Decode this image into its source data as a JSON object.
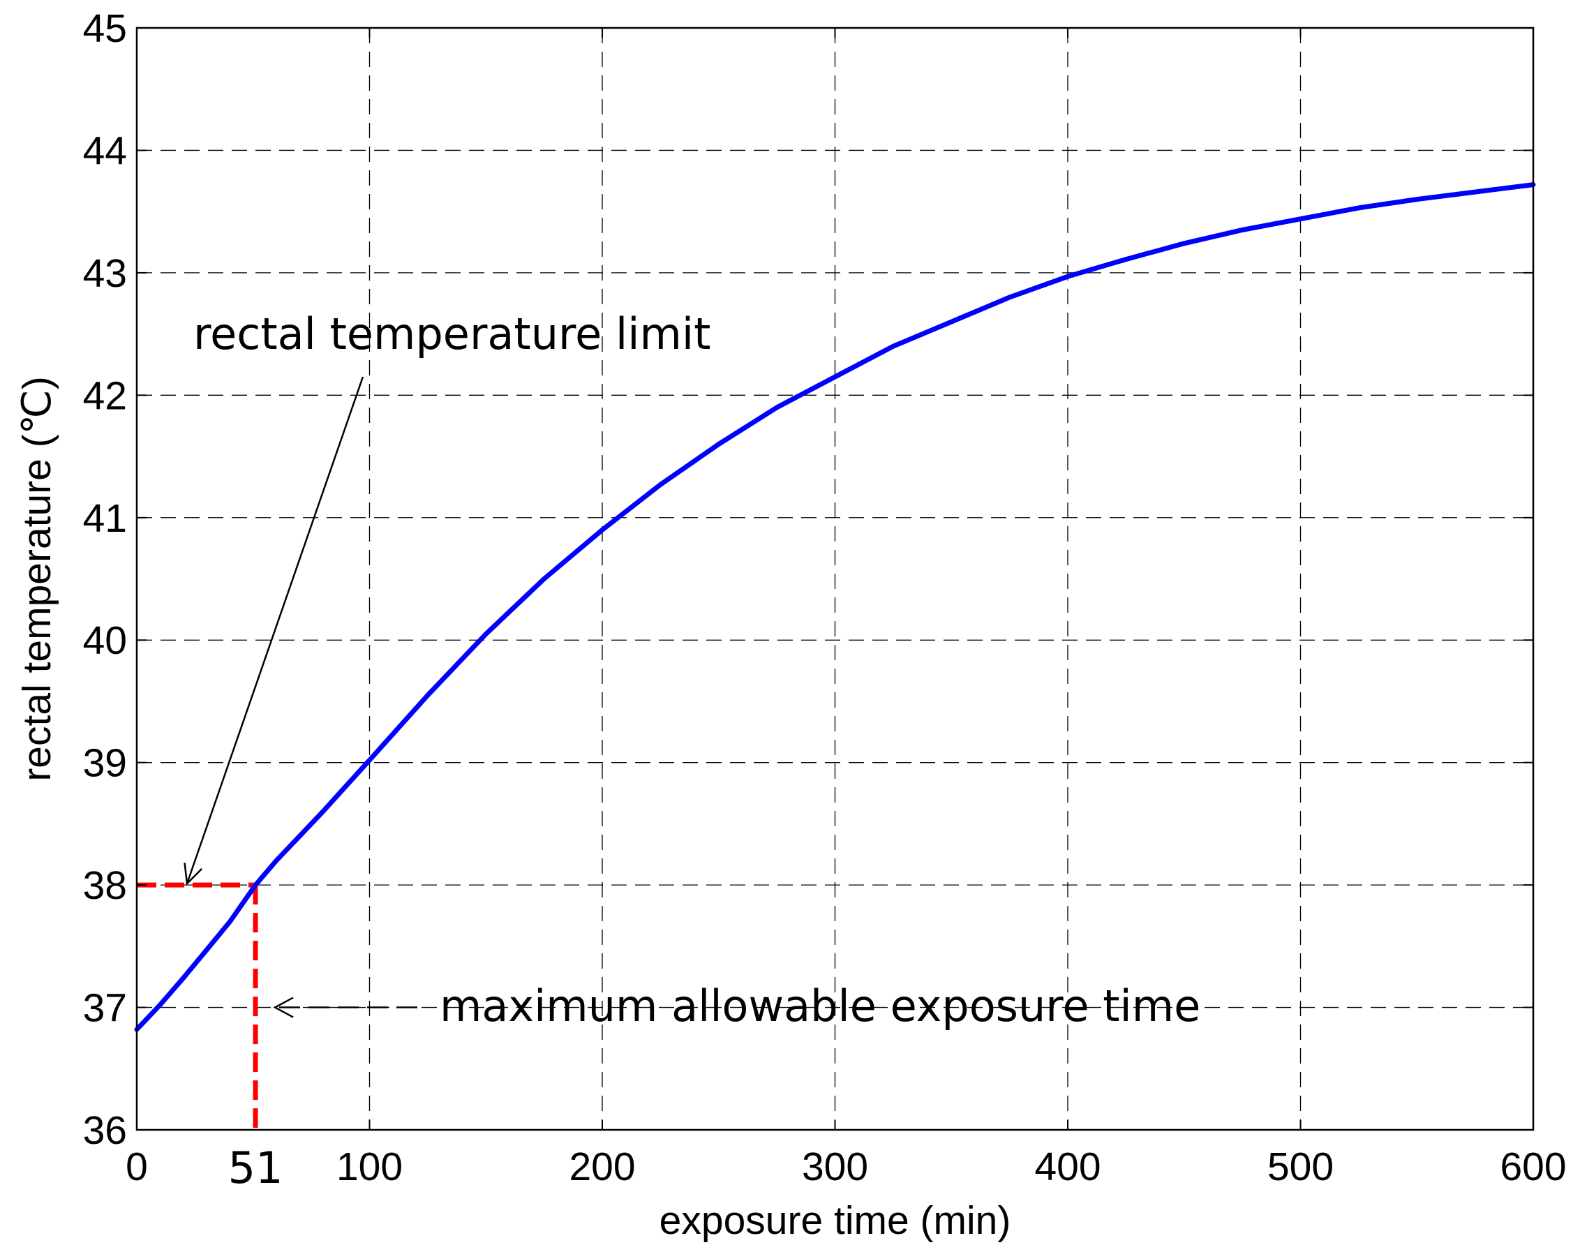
{
  "chart_data": {
    "type": "line",
    "title": "",
    "xlabel": "exposure time (min)",
    "ylabel": "rectal temperature (℃)",
    "xlim": [
      0,
      600
    ],
    "ylim": [
      36,
      45
    ],
    "xticks": [
      0,
      100,
      200,
      300,
      400,
      500,
      600
    ],
    "yticks": [
      36,
      37,
      38,
      39,
      40,
      41,
      42,
      43,
      44,
      45
    ],
    "grid": true,
    "grid_style": "dashed",
    "series": [
      {
        "color": "#0000ff",
        "x": [
          0,
          10,
          20,
          30,
          40,
          51,
          60,
          70,
          80,
          90,
          100,
          125,
          150,
          175,
          200,
          225,
          250,
          275,
          300,
          325,
          350,
          375,
          400,
          425,
          450,
          475,
          500,
          525,
          550,
          575,
          600
        ],
        "y": [
          36.82,
          37.02,
          37.24,
          37.47,
          37.7,
          38.0,
          38.2,
          38.4,
          38.6,
          38.81,
          39.02,
          39.55,
          40.05,
          40.5,
          40.9,
          41.27,
          41.6,
          41.9,
          42.15,
          42.4,
          42.6,
          42.8,
          42.97,
          43.11,
          43.24,
          43.35,
          43.44,
          43.53,
          43.6,
          43.66,
          43.72
        ]
      }
    ],
    "reference_lines": {
      "color": "#ff0000",
      "limit_temperature": 38,
      "limit_time": 51
    },
    "annotations": {
      "limit_label": "rectal temperature limit",
      "time_label": "maximum allowable exposure time",
      "time_marker": "51"
    }
  }
}
